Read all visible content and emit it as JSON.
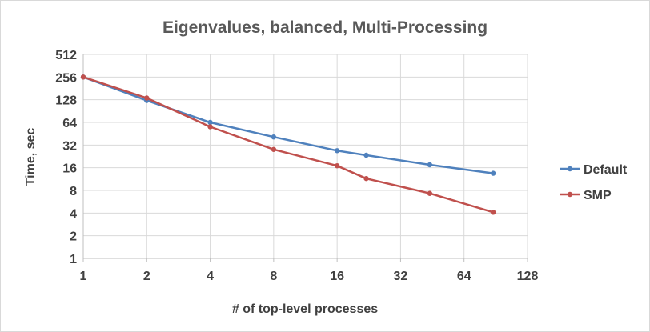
{
  "chart_data": {
    "type": "line",
    "title": "Eigenvalues, balanced, Multi-Processing",
    "xlabel": "# of top-level processes",
    "ylabel": "Time, sec",
    "x_scale": "log2",
    "y_scale": "log2",
    "xlim": [
      1,
      128
    ],
    "ylim": [
      1,
      512
    ],
    "x_ticks": [
      1,
      2,
      4,
      8,
      16,
      32,
      64,
      128
    ],
    "y_ticks": [
      1,
      2,
      4,
      8,
      16,
      32,
      64,
      128,
      256,
      512
    ],
    "grid": true,
    "legend_position": "right",
    "series": [
      {
        "name": "Default",
        "color": "#4f81bd",
        "x": [
          1,
          2,
          4,
          8,
          16,
          22,
          44,
          88
        ],
        "y": [
          256,
          125,
          64,
          41,
          27,
          23.5,
          17.5,
          13.5
        ]
      },
      {
        "name": "SMP",
        "color": "#c0504d",
        "x": [
          1,
          2,
          4,
          8,
          16,
          22,
          44,
          88
        ],
        "y": [
          256,
          135,
          56,
          28,
          17,
          11.5,
          7.3,
          4.1
        ]
      }
    ]
  }
}
